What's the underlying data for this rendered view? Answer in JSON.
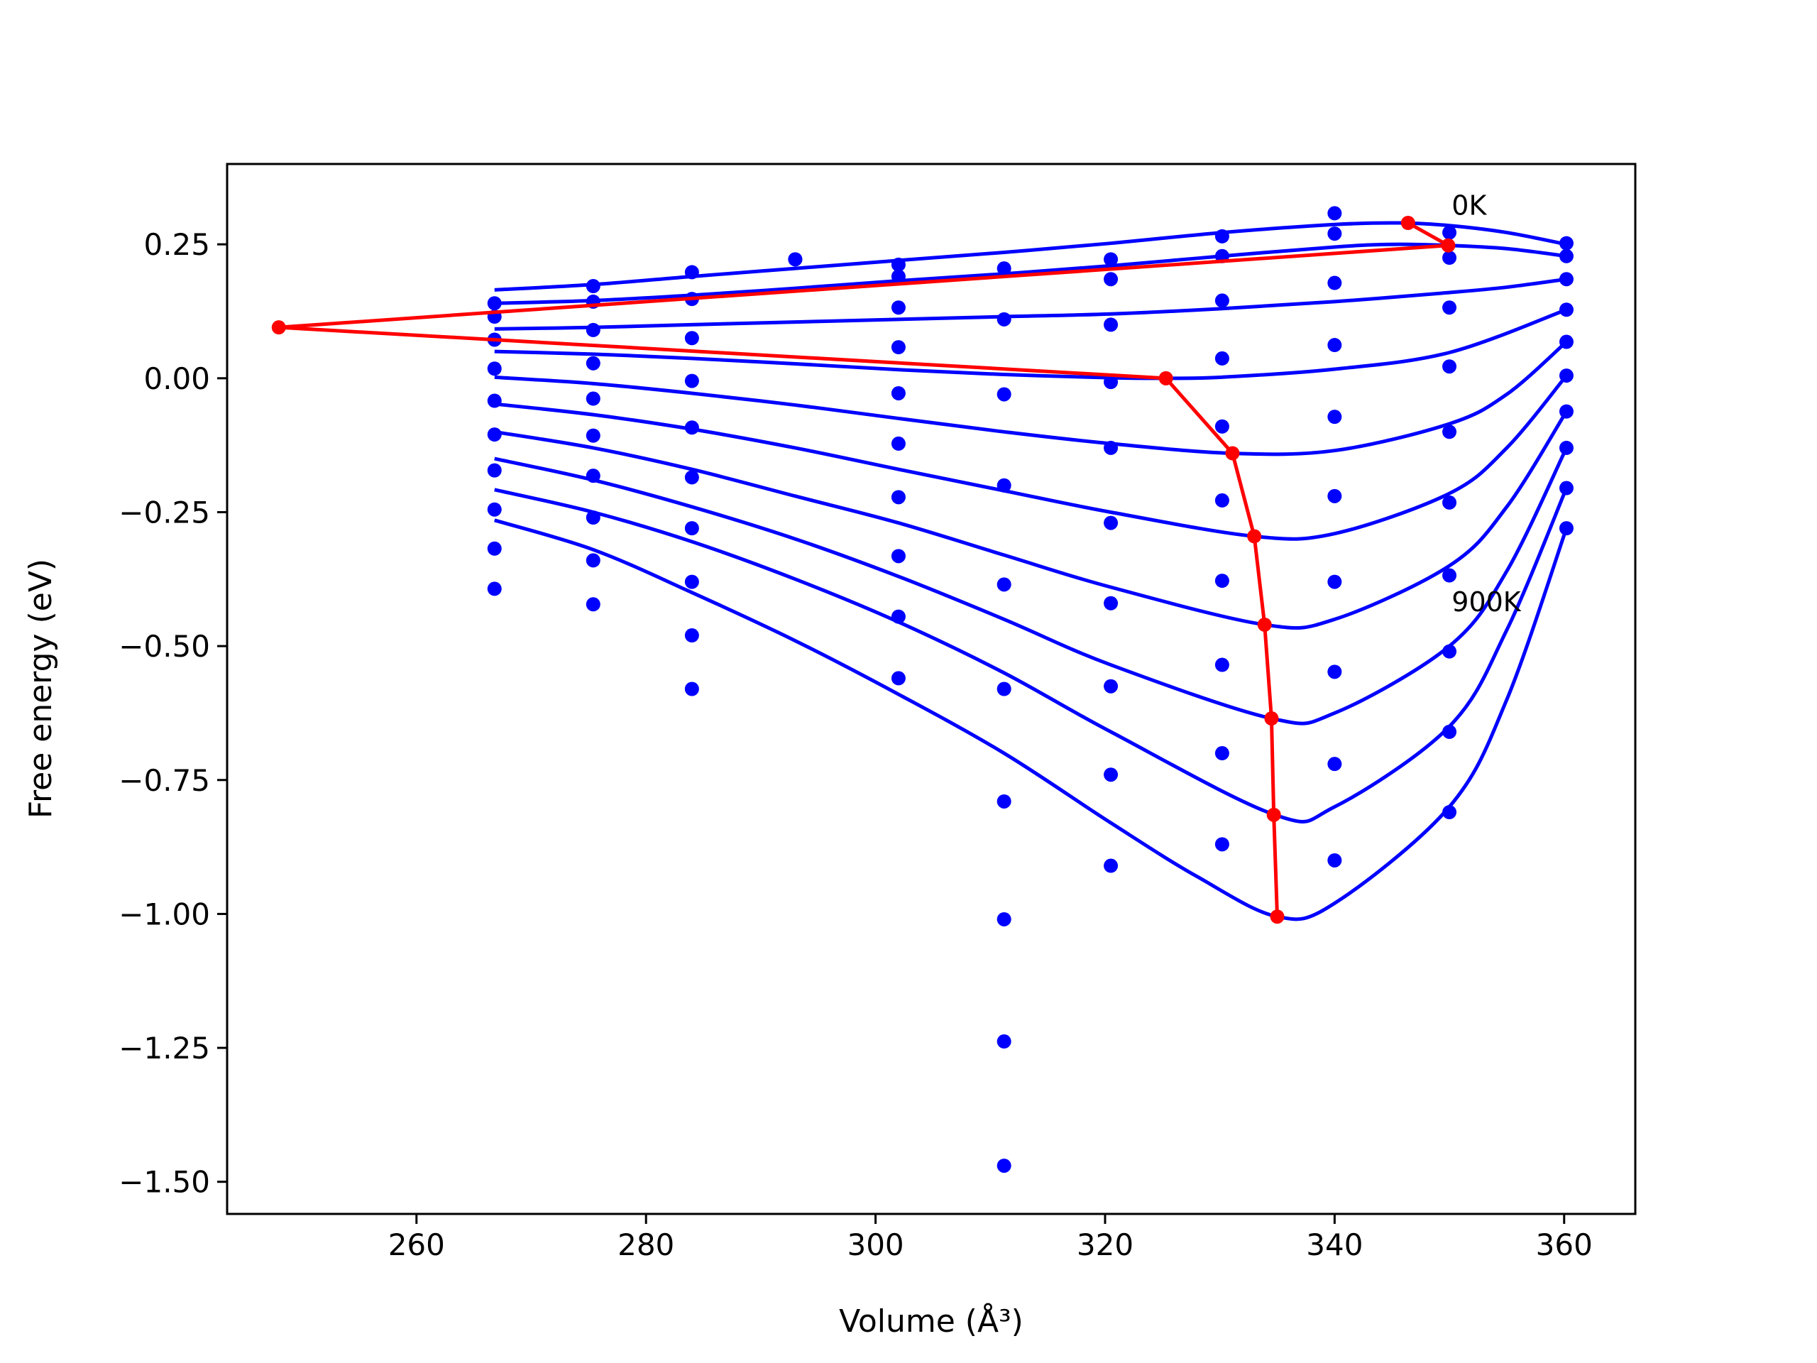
{
  "chart_data": {
    "type": "scatter",
    "xlabel": "Volume (Å³)",
    "ylabel": "Free energy (eV)",
    "xlim": [
      243.5,
      366.2
    ],
    "ylim": [
      -1.56,
      0.4
    ],
    "xticks": [
      260,
      280,
      300,
      320,
      340,
      360
    ],
    "xtick_labels": [
      "260",
      "280",
      "300",
      "320",
      "340",
      "360"
    ],
    "yticks": [
      0.25,
      0.0,
      -0.25,
      -0.5,
      -0.75,
      -1.0,
      -1.25,
      -1.5
    ],
    "ytick_labels": [
      "0.25",
      "0.00",
      "−0.25",
      "−0.50",
      "−0.75",
      "−1.00",
      "−1.25",
      "−1.50"
    ],
    "grid": false,
    "colors": {
      "points": "#0000ff",
      "curves": "#0000ff",
      "minima": "#ff0000"
    },
    "annotations": [
      {
        "text": "0K",
        "x": 350.2,
        "y": 0.305
      },
      {
        "text": "900K",
        "x": 350.2,
        "y": -0.435
      }
    ],
    "points": [
      [
        266.8,
        0.14
      ],
      [
        266.8,
        0.115
      ],
      [
        266.8,
        0.072
      ],
      [
        266.8,
        0.018
      ],
      [
        266.8,
        -0.042
      ],
      [
        266.8,
        -0.105
      ],
      [
        266.8,
        -0.172
      ],
      [
        266.8,
        -0.245
      ],
      [
        266.8,
        -0.318
      ],
      [
        266.8,
        -0.393
      ],
      [
        275.4,
        0.172
      ],
      [
        275.4,
        0.143
      ],
      [
        275.4,
        0.09
      ],
      [
        275.4,
        0.028
      ],
      [
        275.4,
        -0.038
      ],
      [
        275.4,
        -0.107
      ],
      [
        275.4,
        -0.182
      ],
      [
        275.4,
        -0.26
      ],
      [
        275.4,
        -0.34
      ],
      [
        275.4,
        -0.422
      ],
      [
        284.0,
        0.198
      ],
      [
        284.0,
        0.148
      ],
      [
        284.0,
        0.075
      ],
      [
        284.0,
        -0.005
      ],
      [
        284.0,
        -0.092
      ],
      [
        284.0,
        -0.185
      ],
      [
        284.0,
        -0.28
      ],
      [
        284.0,
        -0.38
      ],
      [
        284.0,
        -0.48
      ],
      [
        284.0,
        -0.58
      ],
      [
        293.0,
        0.222
      ],
      [
        293.0,
        0.222
      ],
      [
        302.0,
        0.212
      ],
      [
        302.0,
        0.19
      ],
      [
        302.0,
        0.132
      ],
      [
        302.0,
        0.058
      ],
      [
        302.0,
        -0.028
      ],
      [
        302.0,
        -0.122
      ],
      [
        302.0,
        -0.222
      ],
      [
        302.0,
        -0.332
      ],
      [
        302.0,
        -0.445
      ],
      [
        302.0,
        -0.56
      ],
      [
        311.2,
        0.205
      ],
      [
        311.2,
        0.11
      ],
      [
        311.2,
        -0.03
      ],
      [
        311.2,
        -0.2
      ],
      [
        311.2,
        -0.385
      ],
      [
        311.2,
        -0.58
      ],
      [
        311.2,
        -0.79
      ],
      [
        311.2,
        -1.01
      ],
      [
        311.2,
        -1.238
      ],
      [
        311.2,
        -1.47
      ],
      [
        320.5,
        0.222
      ],
      [
        320.5,
        0.185
      ],
      [
        320.5,
        0.1
      ],
      [
        320.5,
        -0.007
      ],
      [
        320.5,
        -0.13
      ],
      [
        320.5,
        -0.27
      ],
      [
        320.5,
        -0.42
      ],
      [
        320.5,
        -0.575
      ],
      [
        320.5,
        -0.74
      ],
      [
        320.5,
        -0.91
      ],
      [
        330.2,
        0.265
      ],
      [
        330.2,
        0.228
      ],
      [
        330.2,
        0.145
      ],
      [
        330.2,
        0.037
      ],
      [
        330.2,
        -0.09
      ],
      [
        330.2,
        -0.228
      ],
      [
        330.2,
        -0.378
      ],
      [
        330.2,
        -0.535
      ],
      [
        330.2,
        -0.7
      ],
      [
        330.2,
        -0.87
      ],
      [
        340.0,
        0.308
      ],
      [
        340.0,
        0.27
      ],
      [
        340.0,
        0.178
      ],
      [
        340.0,
        0.062
      ],
      [
        340.0,
        -0.072
      ],
      [
        340.0,
        -0.22
      ],
      [
        340.0,
        -0.38
      ],
      [
        340.0,
        -0.548
      ],
      [
        340.0,
        -0.72
      ],
      [
        340.0,
        -0.9
      ],
      [
        350.0,
        0.272
      ],
      [
        350.0,
        0.225
      ],
      [
        350.0,
        0.132
      ],
      [
        350.0,
        0.022
      ],
      [
        350.0,
        -0.1
      ],
      [
        350.0,
        -0.232
      ],
      [
        350.0,
        -0.368
      ],
      [
        350.0,
        -0.51
      ],
      [
        350.0,
        -0.66
      ],
      [
        350.0,
        -0.81
      ],
      [
        360.2,
        0.252
      ],
      [
        360.2,
        0.228
      ],
      [
        360.2,
        0.185
      ],
      [
        360.2,
        0.128
      ],
      [
        360.2,
        0.068
      ],
      [
        360.2,
        0.005
      ],
      [
        360.2,
        -0.062
      ],
      [
        360.2,
        -0.13
      ],
      [
        360.2,
        -0.205
      ],
      [
        360.2,
        -0.28
      ]
    ],
    "curves": [
      [
        [
          266.8,
          0.165
        ],
        [
          275.4,
          0.175
        ],
        [
          284.0,
          0.19
        ],
        [
          293.0,
          0.205
        ],
        [
          302.0,
          0.22
        ],
        [
          311.2,
          0.235
        ],
        [
          320.5,
          0.252
        ],
        [
          330.2,
          0.272
        ],
        [
          340.0,
          0.287
        ],
        [
          345.6,
          0.29
        ],
        [
          350.0,
          0.285
        ],
        [
          355.0,
          0.272
        ],
        [
          360.2,
          0.25
        ]
      ],
      [
        [
          266.8,
          0.14
        ],
        [
          275.4,
          0.145
        ],
        [
          284.0,
          0.155
        ],
        [
          293.0,
          0.168
        ],
        [
          302.0,
          0.182
        ],
        [
          311.2,
          0.195
        ],
        [
          320.5,
          0.21
        ],
        [
          330.2,
          0.228
        ],
        [
          340.0,
          0.245
        ],
        [
          345.0,
          0.25
        ],
        [
          350.0,
          0.248
        ],
        [
          355.0,
          0.242
        ],
        [
          360.2,
          0.228
        ]
      ],
      [
        [
          266.8,
          0.092
        ],
        [
          275.4,
          0.095
        ],
        [
          284.0,
          0.1
        ],
        [
          293.0,
          0.105
        ],
        [
          302.0,
          0.11
        ],
        [
          311.2,
          0.115
        ],
        [
          320.5,
          0.12
        ],
        [
          330.2,
          0.13
        ],
        [
          340.0,
          0.143
        ],
        [
          350.0,
          0.16
        ],
        [
          355.0,
          0.17
        ],
        [
          360.2,
          0.185
        ]
      ],
      [
        [
          266.8,
          0.05
        ],
        [
          275.4,
          0.045
        ],
        [
          284.0,
          0.037
        ],
        [
          293.0,
          0.027
        ],
        [
          302.0,
          0.016
        ],
        [
          311.2,
          0.007
        ],
        [
          320.5,
          0.001
        ],
        [
          325.3,
          0.0
        ],
        [
          330.2,
          0.002
        ],
        [
          340.0,
          0.017
        ],
        [
          350.0,
          0.048
        ],
        [
          360.2,
          0.128
        ]
      ],
      [
        [
          266.8,
          0.002
        ],
        [
          275.4,
          -0.01
        ],
        [
          284.0,
          -0.028
        ],
        [
          293.0,
          -0.05
        ],
        [
          302.0,
          -0.075
        ],
        [
          311.2,
          -0.1
        ],
        [
          320.5,
          -0.122
        ],
        [
          331.0,
          -0.14
        ],
        [
          340.0,
          -0.135
        ],
        [
          350.0,
          -0.085
        ],
        [
          355.0,
          -0.03
        ],
        [
          360.2,
          0.068
        ]
      ],
      [
        [
          266.8,
          -0.048
        ],
        [
          275.4,
          -0.068
        ],
        [
          284.0,
          -0.095
        ],
        [
          293.0,
          -0.13
        ],
        [
          302.0,
          -0.17
        ],
        [
          311.2,
          -0.21
        ],
        [
          320.5,
          -0.25
        ],
        [
          333.0,
          -0.295
        ],
        [
          340.0,
          -0.29
        ],
        [
          350.0,
          -0.215
        ],
        [
          355.0,
          -0.13
        ],
        [
          360.2,
          0.005
        ]
      ],
      [
        [
          266.8,
          -0.1
        ],
        [
          275.4,
          -0.13
        ],
        [
          284.0,
          -0.17
        ],
        [
          293.0,
          -0.22
        ],
        [
          302.0,
          -0.27
        ],
        [
          311.2,
          -0.33
        ],
        [
          320.5,
          -0.39
        ],
        [
          333.9,
          -0.46
        ],
        [
          340.0,
          -0.45
        ],
        [
          350.0,
          -0.35
        ],
        [
          355.0,
          -0.24
        ],
        [
          360.2,
          -0.062
        ]
      ],
      [
        [
          266.8,
          -0.15
        ],
        [
          275.4,
          -0.19
        ],
        [
          284.0,
          -0.24
        ],
        [
          293.0,
          -0.3
        ],
        [
          302.0,
          -0.37
        ],
        [
          311.2,
          -0.45
        ],
        [
          320.5,
          -0.535
        ],
        [
          334.5,
          -0.635
        ],
        [
          340.0,
          -0.625
        ],
        [
          350.0,
          -0.5
        ],
        [
          355.0,
          -0.36
        ],
        [
          360.2,
          -0.13
        ]
      ],
      [
        [
          266.8,
          -0.208
        ],
        [
          275.4,
          -0.25
        ],
        [
          284.0,
          -0.305
        ],
        [
          293.0,
          -0.375
        ],
        [
          302.0,
          -0.455
        ],
        [
          311.2,
          -0.55
        ],
        [
          320.5,
          -0.66
        ],
        [
          334.8,
          -0.815
        ],
        [
          340.0,
          -0.8
        ],
        [
          350.0,
          -0.65
        ],
        [
          355.0,
          -0.47
        ],
        [
          360.2,
          -0.205
        ]
      ],
      [
        [
          266.8,
          -0.265
        ],
        [
          275.4,
          -0.32
        ],
        [
          284.0,
          -0.4
        ],
        [
          293.0,
          -0.49
        ],
        [
          302.0,
          -0.59
        ],
        [
          311.2,
          -0.7
        ],
        [
          320.5,
          -0.83
        ],
        [
          328.0,
          -0.93
        ],
        [
          335.0,
          -1.005
        ],
        [
          340.0,
          -0.98
        ],
        [
          350.0,
          -0.8
        ],
        [
          355.0,
          -0.6
        ],
        [
          360.2,
          -0.28
        ]
      ]
    ],
    "minima_path": [
      [
        346.4,
        0.29
      ],
      [
        349.9,
        0.248
      ],
      [
        248.0,
        0.095
      ],
      [
        325.3,
        0.0
      ],
      [
        331.1,
        -0.14
      ],
      [
        333.0,
        -0.295
      ],
      [
        333.9,
        -0.46
      ],
      [
        334.5,
        -0.635
      ],
      [
        334.7,
        -0.815
      ],
      [
        335.0,
        -1.005
      ]
    ]
  }
}
